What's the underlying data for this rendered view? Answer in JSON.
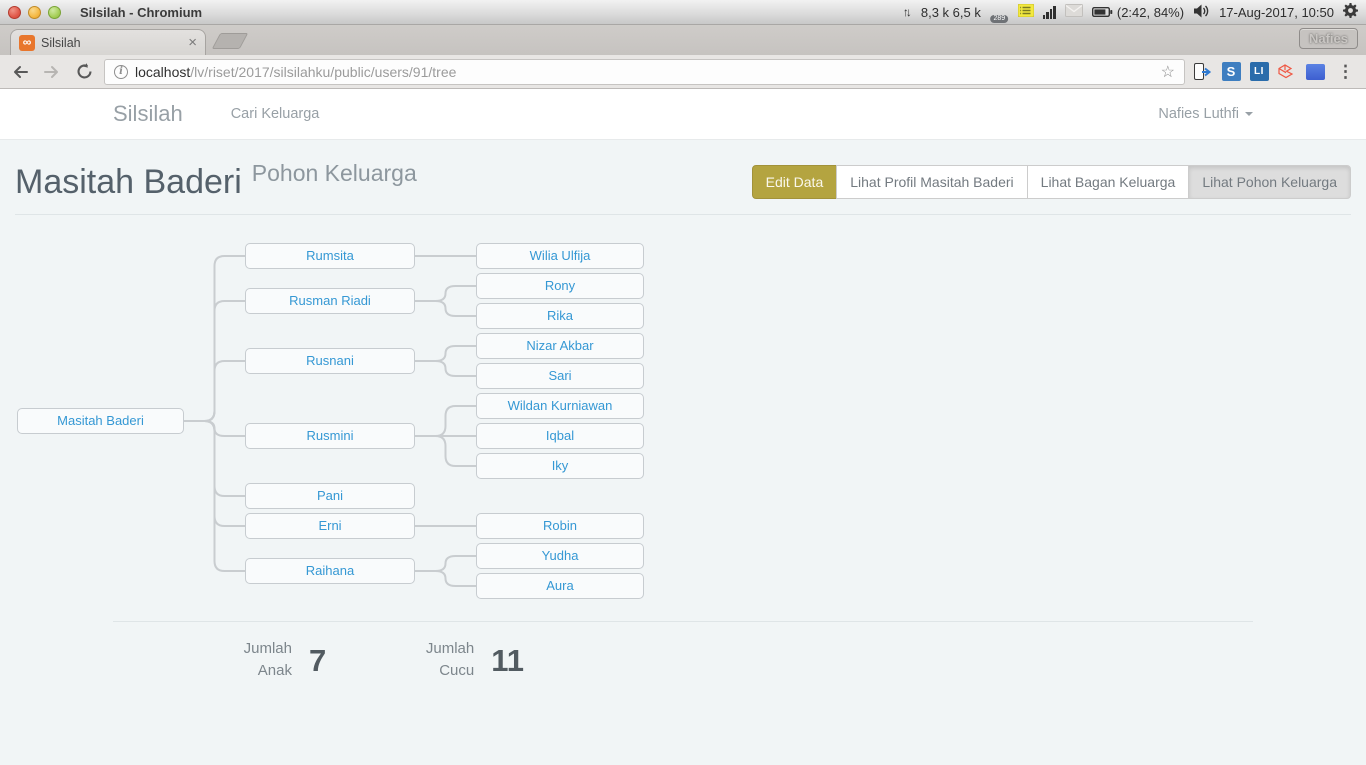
{
  "titlebar": {
    "window_title": "Silsilah - Chromium",
    "tray": {
      "network_rates": "8,3 k 6,5 k",
      "app_badge_count": "289",
      "battery_status": "(2:42, 84%)",
      "datetime": "17-Aug-2017, 10:50"
    }
  },
  "tabstrip": {
    "tab_title": "Silsilah",
    "favicon_glyph": "∞",
    "close_glyph": "×",
    "keyboard_indicator": "Nafies"
  },
  "toolbar": {
    "url_host": "localhost",
    "url_path": "/lv/riset/2017/silsilahku/public/users/91/tree",
    "bookmark_star": "☆",
    "menu_glyph": "⋮",
    "updown_glyph": "↑↓",
    "ext_s_label": "S",
    "ext_li_label": "LI"
  },
  "navbar": {
    "brand": "Silsilah",
    "nav_link": "Cari Keluarga",
    "user_menu": "Nafies Luthfi"
  },
  "page": {
    "title": "Masitah Baderi",
    "subtitle": "Pohon Keluarga",
    "buttons": [
      {
        "label": "Edit Data",
        "variant": "olive"
      },
      {
        "label": "Lihat Profil Masitah Baderi",
        "variant": "default"
      },
      {
        "label": "Lihat Bagan Keluarga",
        "variant": "default"
      },
      {
        "label": "Lihat Pohon Keluarga",
        "variant": "active"
      }
    ],
    "stats": [
      {
        "label": "Jumlah Anak",
        "value": "7"
      },
      {
        "label": "Jumlah Cucu",
        "value": "11"
      }
    ]
  },
  "tree": {
    "name": "Masitah Baderi",
    "children": [
      {
        "name": "Rumsita",
        "children": [
          {
            "name": "Wilia Ulfija"
          }
        ]
      },
      {
        "name": "Rusman Riadi",
        "children": [
          {
            "name": "Rony"
          },
          {
            "name": "Rika"
          }
        ]
      },
      {
        "name": "Rusnani",
        "children": [
          {
            "name": "Nizar Akbar"
          },
          {
            "name": "Sari"
          }
        ]
      },
      {
        "name": "Rusmini",
        "children": [
          {
            "name": "Wildan Kurniawan"
          },
          {
            "name": "Iqbal"
          },
          {
            "name": "Iky"
          }
        ]
      },
      {
        "name": "Pani"
      },
      {
        "name": "Erni",
        "children": [
          {
            "name": "Robin"
          }
        ]
      },
      {
        "name": "Raihana",
        "children": [
          {
            "name": "Yudha"
          },
          {
            "name": "Aura"
          }
        ]
      }
    ]
  },
  "colors": {
    "node_text": "#3598d4",
    "node_border": "#c7ccd0",
    "node_bg": "#f9fbfc",
    "connector": "#c9cdd0",
    "content_bg": "#f1f5f6",
    "edit_button_bg": "#b4a440",
    "active_button_bg": "#dddddd",
    "tray_app_circle": "#3b99d4",
    "tray_list_icon": "#f3e93f",
    "favicon_bg": "#e8762c"
  }
}
